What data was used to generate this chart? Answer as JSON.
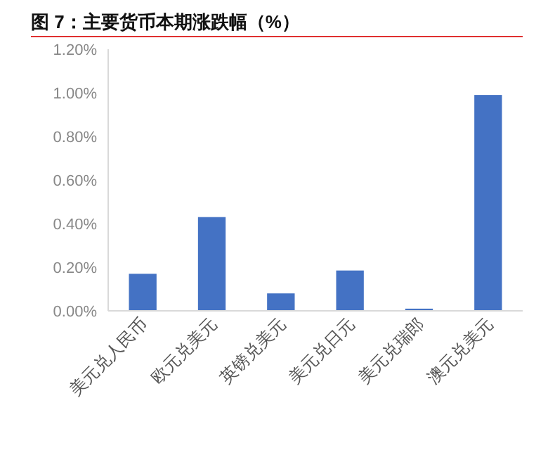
{
  "chart_data": {
    "type": "bar",
    "title": "图 7：主要货币本期涨跌幅（%）",
    "categories": [
      "美元兑人民币",
      "欧元兑美元",
      "英镑兑美元",
      "美元兑日元",
      "美元兑瑞郎",
      "澳元兑美元"
    ],
    "values": [
      0.17,
      0.43,
      0.08,
      0.185,
      0.01,
      0.99
    ],
    "color": "#4472c4",
    "ylim": [
      0,
      1.2
    ],
    "yticks": [
      {
        "value": 0,
        "label": "0.00%"
      },
      {
        "value": 0.2,
        "label": "0.20%"
      },
      {
        "value": 0.4,
        "label": "0.40%"
      },
      {
        "value": 0.6,
        "label": "0.60%"
      },
      {
        "value": 0.8,
        "label": "0.80%"
      },
      {
        "value": 1.0,
        "label": "1.00%"
      },
      {
        "value": 1.2,
        "label": "1.20%"
      }
    ],
    "grid": false
  }
}
